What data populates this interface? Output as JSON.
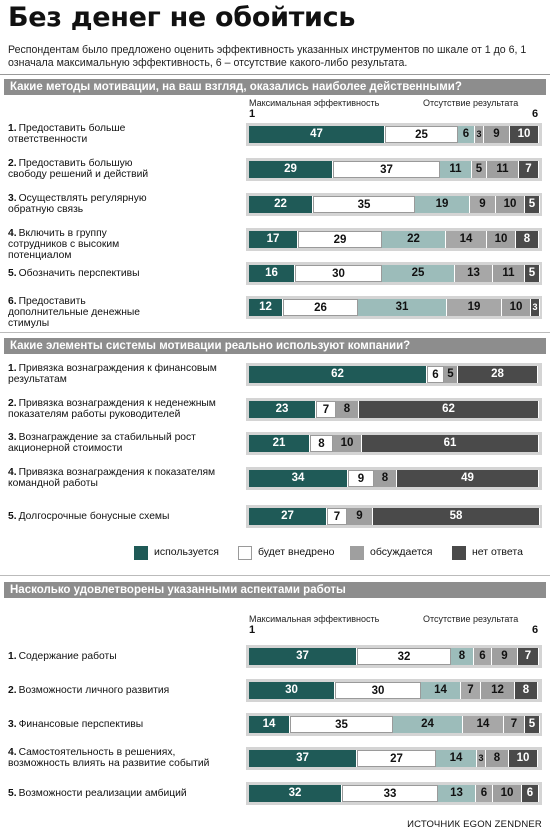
{
  "title": "Без денег не обойтись",
  "intro": "Респондентам было предложено оценить эффективность указанных инструментов по шкале от 1 до 6, 1 означала максимальную эффективность, 6 – отсутствие какого-либо результата.",
  "source": "ИСТОЧНИК EGON ZENDNER",
  "colors": {
    "green": "#1f5a57",
    "white": "#ffffff",
    "light_teal": "#9cbcba",
    "light_gray": "#a7a7a7",
    "gray": "#9f9f9f",
    "dark": "#4a4a4a"
  },
  "chart_data": [
    {
      "type": "bar",
      "orientation": "horizontal-stacked",
      "title": "Какие методы мотивации, на ваш взгляд, оказались наиболее действенными?",
      "scale_left_label": "Максимальная эффективность",
      "scale_right_label": "Отсутствие результата",
      "scale_min": "1",
      "scale_max": "6",
      "series_colors": [
        "green",
        "white",
        "light_teal",
        "light_gray",
        "gray",
        "dark"
      ],
      "rows": [
        {
          "num": "1.",
          "label": "Предоставить больше ответственности",
          "values": [
            47,
            25,
            6,
            3,
            9,
            10
          ]
        },
        {
          "num": "2.",
          "label": "Предоставить большую свободу решений и действий",
          "values": [
            29,
            37,
            11,
            5,
            11,
            7
          ]
        },
        {
          "num": "3.",
          "label": "Осуществлять регулярную обратную связь",
          "values": [
            22,
            35,
            19,
            9,
            10,
            5
          ]
        },
        {
          "num": "4.",
          "label": "Включить в группу сотрудников с высоким потенциалом",
          "values": [
            17,
            29,
            22,
            14,
            10,
            8
          ]
        },
        {
          "num": "5.",
          "label": "Обозначить перспективы",
          "values": [
            16,
            30,
            25,
            13,
            11,
            5
          ]
        },
        {
          "num": "6.",
          "label": "Предоставить дополнительные денежные стимулы",
          "values": [
            12,
            26,
            31,
            19,
            10,
            3
          ]
        }
      ]
    },
    {
      "type": "bar",
      "orientation": "horizontal-stacked",
      "title": "Какие элементы системы мотивации реально используют компании?",
      "series": [
        {
          "name": "используется",
          "color": "green"
        },
        {
          "name": "будет внедрено",
          "color": "white"
        },
        {
          "name": "обсуждается",
          "color": "gray"
        },
        {
          "name": "нет ответа",
          "color": "dark"
        }
      ],
      "rows": [
        {
          "num": "1.",
          "label": "Привязка вознаграждения к финансовым результатам",
          "values": [
            62,
            6,
            5,
            28
          ]
        },
        {
          "num": "2.",
          "label": "Привязка вознаграждения к неденежным показателям работы руководителей",
          "values": [
            23,
            7,
            8,
            62
          ]
        },
        {
          "num": "3.",
          "label": "Вознаграждение за стабильный рост акционерной стоимости",
          "values": [
            21,
            8,
            10,
            61
          ]
        },
        {
          "num": "4.",
          "label": "Привязка вознаграждения к показателям командной работы",
          "values": [
            34,
            9,
            8,
            49
          ]
        },
        {
          "num": "5.",
          "label": "Долгосрочные бонусные схемы",
          "values": [
            27,
            7,
            9,
            58
          ]
        }
      ]
    },
    {
      "type": "bar",
      "orientation": "horizontal-stacked",
      "title": "Насколько удовлетворены указанными аспектами работы",
      "scale_left_label": "Максимальная эффективность",
      "scale_right_label": "Отсутствие результата",
      "scale_min": "1",
      "scale_max": "6",
      "series_colors": [
        "green",
        "white",
        "light_teal",
        "light_gray",
        "gray",
        "dark"
      ],
      "rows": [
        {
          "num": "1.",
          "label": "Содержание работы",
          "values": [
            37,
            32,
            8,
            6,
            9,
            7
          ]
        },
        {
          "num": "2.",
          "label": "Возможности личного развития",
          "values": [
            30,
            30,
            14,
            7,
            12,
            8
          ]
        },
        {
          "num": "3.",
          "label": "Финансовые перспективы",
          "values": [
            14,
            35,
            24,
            14,
            7,
            5
          ]
        },
        {
          "num": "4.",
          "label": "Самостоятельность в решениях, возможность влиять на развитие событий",
          "values": [
            37,
            27,
            14,
            3,
            8,
            10
          ]
        },
        {
          "num": "5.",
          "label": "Возможности реализации амбиций",
          "values": [
            32,
            33,
            13,
            6,
            10,
            6
          ]
        }
      ]
    }
  ]
}
